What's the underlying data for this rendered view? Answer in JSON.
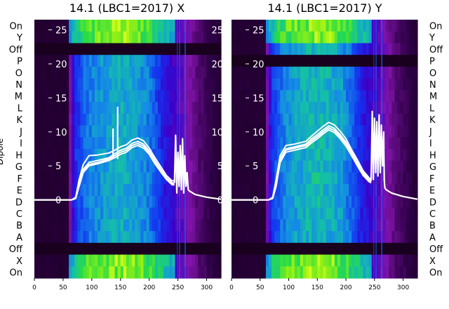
{
  "chart_data": [
    {
      "type": "heatmap",
      "title": "14.1 (LBC1=2017) X",
      "ylabel": "Dipole",
      "x_ticks": [
        0,
        50,
        100,
        150,
        200,
        250,
        300
      ],
      "xlim": [
        0,
        325
      ],
      "y_ticks": [
        0,
        5,
        10,
        15,
        20,
        25
      ],
      "ylim": [
        -11.5,
        26.5
      ],
      "row_labels": [
        "On",
        "Y",
        "Off",
        "P",
        "O",
        "N",
        "M",
        "L",
        "K",
        "J",
        "I",
        "H",
        "G",
        "F",
        "E",
        "D",
        "C",
        "B",
        "A",
        "Off",
        "X",
        "On"
      ],
      "off_rows": [
        2,
        19
      ],
      "colormap_note": "heatmap of spectra per dipole, overlaid with white line traces",
      "lines": [
        {
          "x": [
            0,
            65,
            72,
            78,
            85,
            95,
            110,
            130,
            140,
            150,
            160,
            170,
            180,
            190,
            200,
            210,
            220,
            230,
            240,
            244
          ],
          "y": [
            0,
            0,
            0.3,
            2.5,
            4.5,
            5.5,
            5.8,
            6.2,
            6.8,
            7.3,
            7.6,
            8.3,
            8.6,
            8.2,
            7.2,
            5.8,
            4.5,
            3.3,
            2.5,
            2.5
          ]
        },
        {
          "x": [
            0,
            65,
            72,
            78,
            85,
            95,
            110,
            130,
            140,
            150,
            160,
            170,
            180,
            190,
            200,
            210,
            220,
            230,
            240,
            244
          ],
          "y": [
            0,
            0,
            0.2,
            2.0,
            4.0,
            5.0,
            5.3,
            5.8,
            6.2,
            6.7,
            7.0,
            7.7,
            8.0,
            7.6,
            6.7,
            5.3,
            4.1,
            3.0,
            2.2,
            2.2
          ]
        },
        {
          "x": [
            0,
            65,
            72,
            78,
            85,
            95,
            110,
            130,
            140,
            150,
            160,
            170,
            180,
            190,
            200,
            210,
            220,
            230,
            240,
            244
          ],
          "y": [
            0,
            0,
            0.4,
            3.0,
            5.2,
            6.5,
            6.6,
            6.9,
            7.3,
            7.8,
            8.1,
            8.8,
            9.1,
            8.7,
            7.6,
            6.2,
            4.9,
            3.6,
            2.8,
            2.8
          ]
        },
        {
          "x": [
            0,
            65,
            72,
            78,
            85,
            95,
            110,
            130,
            140,
            150,
            160,
            170,
            180,
            190,
            200,
            210,
            220,
            230,
            240,
            244
          ],
          "y": [
            0,
            0,
            0.2,
            2.2,
            4.2,
            5.2,
            5.5,
            6.0,
            6.5,
            7.0,
            7.3,
            8.0,
            8.3,
            7.9,
            6.9,
            5.5,
            4.3,
            3.1,
            2.3,
            2.3
          ]
        }
      ],
      "tail": {
        "x": [
          244,
          246,
          248,
          250,
          252,
          254,
          256,
          258,
          260,
          262,
          264,
          266,
          268,
          270,
          280,
          300,
          325
        ],
        "y": [
          2.5,
          9.5,
          1.0,
          7.0,
          2.0,
          8.0,
          1.5,
          9.0,
          1.0,
          6.5,
          2.0,
          4.0,
          1.5,
          1.3,
          0.8,
          0.4,
          0.1
        ]
      },
      "spikes": [
        {
          "x": 137,
          "y": 10.5
        },
        {
          "x": 145,
          "y": 13.7
        }
      ]
    },
    {
      "type": "heatmap",
      "title": "14.1 (LBC1=2017) Y",
      "ylabel": "",
      "x_ticks": [
        0,
        50,
        100,
        150,
        200,
        250,
        300
      ],
      "xlim": [
        0,
        325
      ],
      "y_ticks": [
        0,
        5,
        10,
        15,
        20,
        25
      ],
      "ylim": [
        -11.5,
        26.5
      ],
      "row_labels": [
        "On",
        "Y",
        "Off",
        "P",
        "O",
        "N",
        "M",
        "L",
        "K",
        "J",
        "I",
        "H",
        "G",
        "F",
        "E",
        "D",
        "C",
        "B",
        "A",
        "Off",
        "X",
        "On"
      ],
      "off_rows": [
        3,
        19
      ],
      "colormap_note": "heatmap of spectra per dipole, overlaid with white line traces",
      "lines": [
        {
          "x": [
            0,
            65,
            72,
            78,
            85,
            95,
            110,
            130,
            140,
            150,
            160,
            170,
            180,
            190,
            200,
            210,
            220,
            230,
            240,
            244
          ],
          "y": [
            0,
            0,
            0.3,
            2.5,
            6.0,
            7.5,
            7.8,
            8.2,
            9.0,
            9.6,
            10.3,
            10.9,
            10.5,
            9.6,
            8.5,
            7.0,
            5.5,
            4.0,
            3.0,
            2.8
          ]
        },
        {
          "x": [
            0,
            65,
            72,
            78,
            85,
            95,
            110,
            130,
            140,
            150,
            160,
            170,
            180,
            190,
            200,
            210,
            220,
            230,
            240,
            244
          ],
          "y": [
            0,
            0,
            0.2,
            2.0,
            5.5,
            7.0,
            7.3,
            7.7,
            8.4,
            9.0,
            9.7,
            10.3,
            9.9,
            9.0,
            7.9,
            6.5,
            5.0,
            3.6,
            2.7,
            2.5
          ]
        },
        {
          "x": [
            0,
            65,
            72,
            78,
            85,
            95,
            110,
            130,
            140,
            150,
            160,
            170,
            180,
            190,
            200,
            210,
            220,
            230,
            240,
            244
          ],
          "y": [
            0,
            0,
            0.4,
            3.0,
            6.5,
            8.0,
            8.2,
            8.6,
            9.4,
            10.1,
            10.8,
            11.4,
            11.0,
            10.1,
            9.0,
            7.4,
            5.9,
            4.3,
            3.3,
            3.0
          ]
        },
        {
          "x": [
            0,
            65,
            72,
            78,
            85,
            95,
            110,
            130,
            140,
            150,
            160,
            170,
            180,
            190,
            200,
            210,
            220,
            230,
            240,
            244
          ],
          "y": [
            0,
            0,
            0.3,
            2.2,
            5.8,
            7.3,
            7.6,
            8.0,
            8.7,
            9.3,
            10.0,
            10.6,
            10.2,
            9.3,
            8.2,
            6.8,
            5.3,
            3.8,
            2.9,
            2.6
          ]
        }
      ],
      "tail": {
        "x": [
          244,
          246,
          248,
          250,
          252,
          254,
          256,
          258,
          260,
          262,
          264,
          266,
          267,
          268,
          270,
          280,
          300,
          325
        ],
        "y": [
          2.8,
          13.0,
          3.0,
          12.0,
          4.0,
          11.5,
          3.5,
          12.5,
          4.0,
          11.0,
          5.0,
          10.0,
          3.0,
          1.8,
          1.5,
          1.0,
          0.5,
          0.1
        ]
      },
      "spikes": []
    }
  ]
}
